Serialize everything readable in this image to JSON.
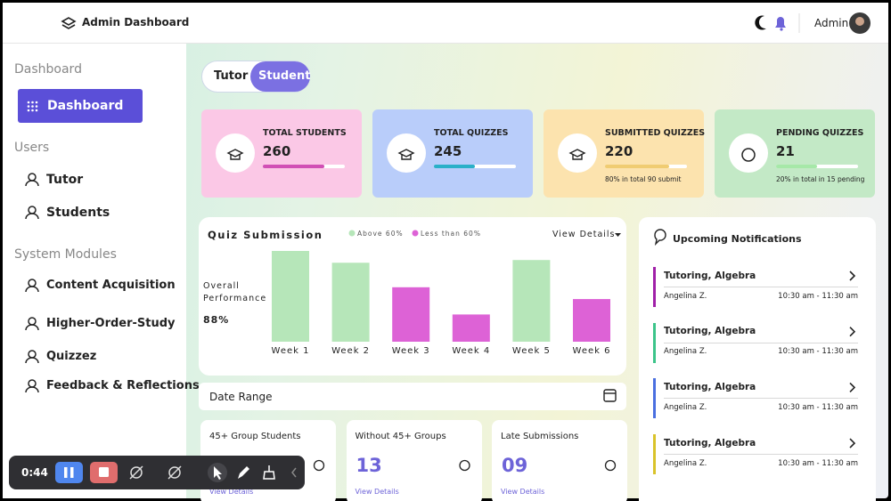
{
  "header": {
    "title": "Admin Dashboard",
    "user": "Admin"
  },
  "sidebar": {
    "sections": [
      {
        "heading": "Dashboard",
        "items": [
          "Dashboard"
        ]
      },
      {
        "heading": "Users",
        "items": [
          "Tutor",
          "Students"
        ]
      },
      {
        "heading": "System Modules",
        "items": [
          "Content Acquisition",
          "Higher-Order-Study",
          "Quizzez",
          "Feedback & Reflections"
        ]
      }
    ]
  },
  "toggle": [
    "Tutor",
    "Student"
  ],
  "stats": [
    {
      "label": "TOTAL STUDENTS",
      "value": 260,
      "progress": 75,
      "color": "#fbc8e6",
      "bar": "#d14fb5"
    },
    {
      "label": "TOTAL QUIZZES",
      "value": 245,
      "progress": 50,
      "color": "#b9cdfa",
      "bar": "#2ab0c8"
    },
    {
      "label": "SUBMITTED QUIZZES",
      "value": 220,
      "progress": 78,
      "color": "#fce3ae",
      "bar": "#f0cc72",
      "note": "80% in total 90 submit"
    },
    {
      "label": "PENDING QUIZZES",
      "value": 21,
      "progress": 50,
      "color": "#c3e9c6",
      "bar": "#a6e8a8",
      "note": "20% in total in 15 pending"
    }
  ],
  "chart_data": {
    "type": "bar",
    "title": "Quiz Submission",
    "view": "View Details",
    "side_label": "Overall Performance",
    "side_value": "88%",
    "categories": [
      "Week 1",
      "Week 2",
      "Week 3",
      "Week 4",
      "Week 5",
      "Week 6"
    ],
    "series": [
      {
        "name": "Above 60%",
        "color": "#b6e6b9",
        "values": [
          100,
          87,
          null,
          null,
          90,
          null
        ]
      },
      {
        "name": "Less than 60%",
        "color": "#dd62d6",
        "values": [
          null,
          null,
          60,
          30,
          null,
          47
        ]
      }
    ],
    "ylim": [
      0,
      100
    ]
  },
  "date_range": "Date Range",
  "cards": [
    {
      "title": "45+ Group Students",
      "link": "View Details"
    },
    {
      "title": "Without 45+ Groups",
      "value": "13",
      "link": "View Details"
    },
    {
      "title": "Late Submissions",
      "value": "09",
      "link": "View Details"
    }
  ],
  "notifications": {
    "title": "Upcoming Notifications",
    "items": [
      {
        "title": "Tutoring, Algebra",
        "name": "Angelina Z.",
        "time": "10:30 am - 11:30 am",
        "color": "#a020a8"
      },
      {
        "title": "Tutoring, Algebra",
        "name": "Angelina Z.",
        "time": "10:30 am - 11:30 am",
        "color": "#3cc48a"
      },
      {
        "title": "Tutoring, Algebra",
        "name": "Angelina Z.",
        "time": "10:30 am - 11:30 am",
        "color": "#4a6fe0"
      },
      {
        "title": "Tutoring, Algebra",
        "name": "Angelina Z.",
        "time": "10:30 am - 11:30 am",
        "color": "#d9c32a"
      }
    ]
  },
  "recorder": {
    "time": "0:44"
  }
}
